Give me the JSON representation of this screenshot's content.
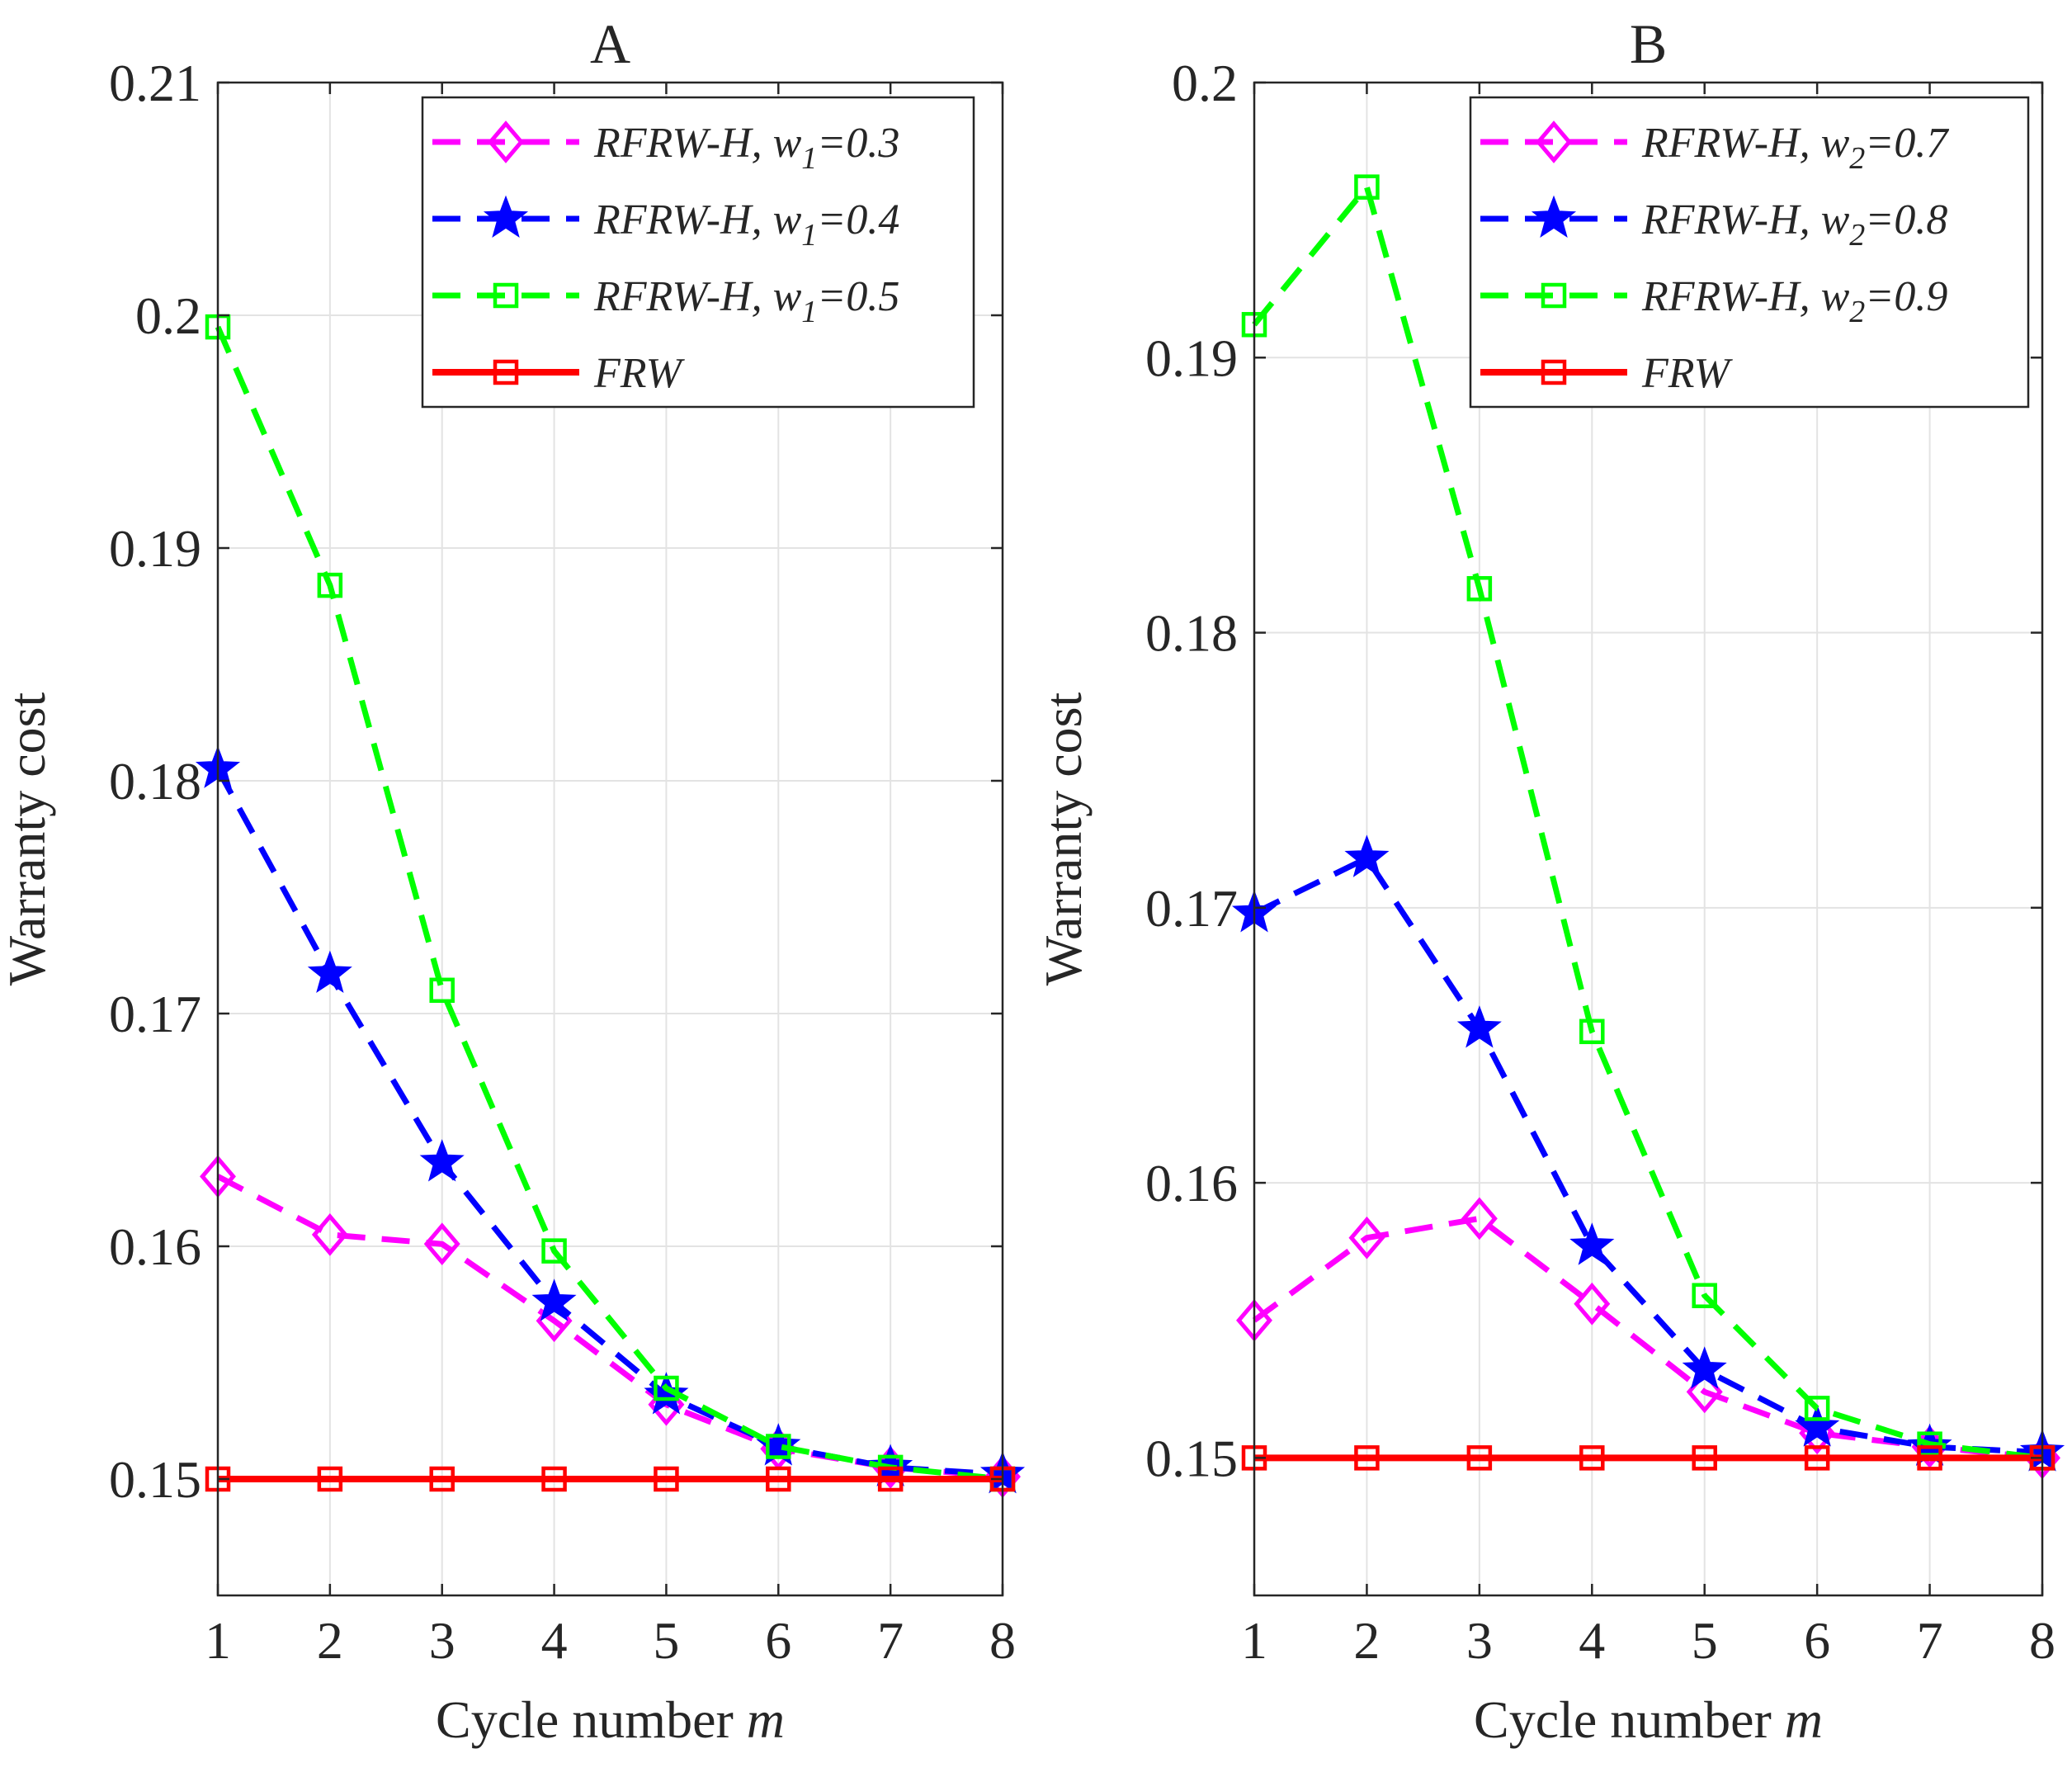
{
  "chart_data": [
    {
      "type": "line",
      "title": "A",
      "xlabel": "Cycle number",
      "xlabel_var": "m",
      "ylabel": "Warranty cost",
      "x": [
        1,
        2,
        3,
        4,
        5,
        6,
        7,
        8
      ],
      "xlim": [
        1,
        8
      ],
      "ylim": [
        0.145,
        0.21
      ],
      "yticks": [
        0.15,
        0.16,
        0.17,
        0.18,
        0.19,
        0.2,
        0.21
      ],
      "ytick_labels": [
        "0.15",
        "0.16",
        "0.17",
        "0.18",
        "0.19",
        "0.2",
        "0.21"
      ],
      "xtick_labels": [
        "1",
        "2",
        "3",
        "4",
        "5",
        "6",
        "7",
        "8"
      ],
      "grid": true,
      "legend_position": "top-right",
      "series": [
        {
          "name": "RFRW-H, w1=0.3",
          "legend_main": "RFRW-H, w",
          "legend_sub": "1",
          "legend_tail": "=0.3",
          "color": "#FF00FF",
          "marker": "diamond",
          "dash": true,
          "values": [
            0.163,
            0.1605,
            0.1601,
            0.1568,
            0.1532,
            0.1513,
            0.1505,
            0.1501
          ]
        },
        {
          "name": "RFRW-H, w1=0.4",
          "legend_main": "RFRW-H, w",
          "legend_sub": "1",
          "legend_tail": "=0.4",
          "color": "#0000FF",
          "marker": "star",
          "dash": true,
          "values": [
            0.1805,
            0.1717,
            0.1636,
            0.1576,
            0.1536,
            0.1514,
            0.1505,
            0.1502
          ]
        },
        {
          "name": "RFRW-H, w1=0.5",
          "legend_main": "RFRW-H, w",
          "legend_sub": "1",
          "legend_tail": "=0.5",
          "color": "#00FF00",
          "marker": "square",
          "dash": true,
          "values": [
            0.1995,
            0.1884,
            0.171,
            0.1598,
            0.1539,
            0.1514,
            0.1505,
            0.15
          ]
        },
        {
          "name": "FRW",
          "legend_main": "FRW",
          "legend_sub": "",
          "legend_tail": "",
          "color": "#FF0000",
          "marker": "square",
          "dash": false,
          "values": [
            0.15,
            0.15,
            0.15,
            0.15,
            0.15,
            0.15,
            0.15,
            0.15
          ]
        }
      ]
    },
    {
      "type": "line",
      "title": "B",
      "xlabel": "Cycle number",
      "xlabel_var": "m",
      "ylabel": "Warranty cost",
      "x": [
        1,
        2,
        3,
        4,
        5,
        6,
        7,
        8
      ],
      "xlim": [
        1,
        8
      ],
      "ylim": [
        0.145,
        0.2
      ],
      "yticks": [
        0.15,
        0.16,
        0.17,
        0.18,
        0.19,
        0.2
      ],
      "ytick_labels": [
        "0.15",
        "0.16",
        "0.17",
        "0.18",
        "0.19",
        "0.2"
      ],
      "xtick_labels": [
        "1",
        "2",
        "3",
        "4",
        "5",
        "6",
        "7",
        "8"
      ],
      "grid": true,
      "legend_position": "top-right",
      "series": [
        {
          "name": "RFRW-H, w2=0.7",
          "legend_main": "RFRW-H, w",
          "legend_sub": "2",
          "legend_tail": "=0.7",
          "color": "#FF00FF",
          "marker": "diamond",
          "dash": true,
          "values": [
            0.155,
            0.158,
            0.1587,
            0.1556,
            0.1524,
            0.1509,
            0.1504,
            0.15
          ]
        },
        {
          "name": "RFRW-H, w2=0.8",
          "legend_main": "RFRW-H, w",
          "legend_sub": "2",
          "legend_tail": "=0.8",
          "color": "#0000FF",
          "marker": "star",
          "dash": true,
          "values": [
            0.1698,
            0.1718,
            0.1656,
            0.1577,
            0.1532,
            0.1511,
            0.1504,
            0.1502
          ]
        },
        {
          "name": "RFRW-H, w2=0.9",
          "legend_main": "RFRW-H, w",
          "legend_sub": "2",
          "legend_tail": "=0.9",
          "color": "#00FF00",
          "marker": "square",
          "dash": true,
          "values": [
            0.1912,
            0.1962,
            0.1816,
            0.1655,
            0.1559,
            0.1518,
            0.1505,
            0.15
          ]
        },
        {
          "name": "FRW",
          "legend_main": "FRW",
          "legend_sub": "",
          "legend_tail": "",
          "color": "#FF0000",
          "marker": "square",
          "dash": false,
          "values": [
            0.15,
            0.15,
            0.15,
            0.15,
            0.15,
            0.15,
            0.15,
            0.15
          ]
        }
      ]
    }
  ]
}
